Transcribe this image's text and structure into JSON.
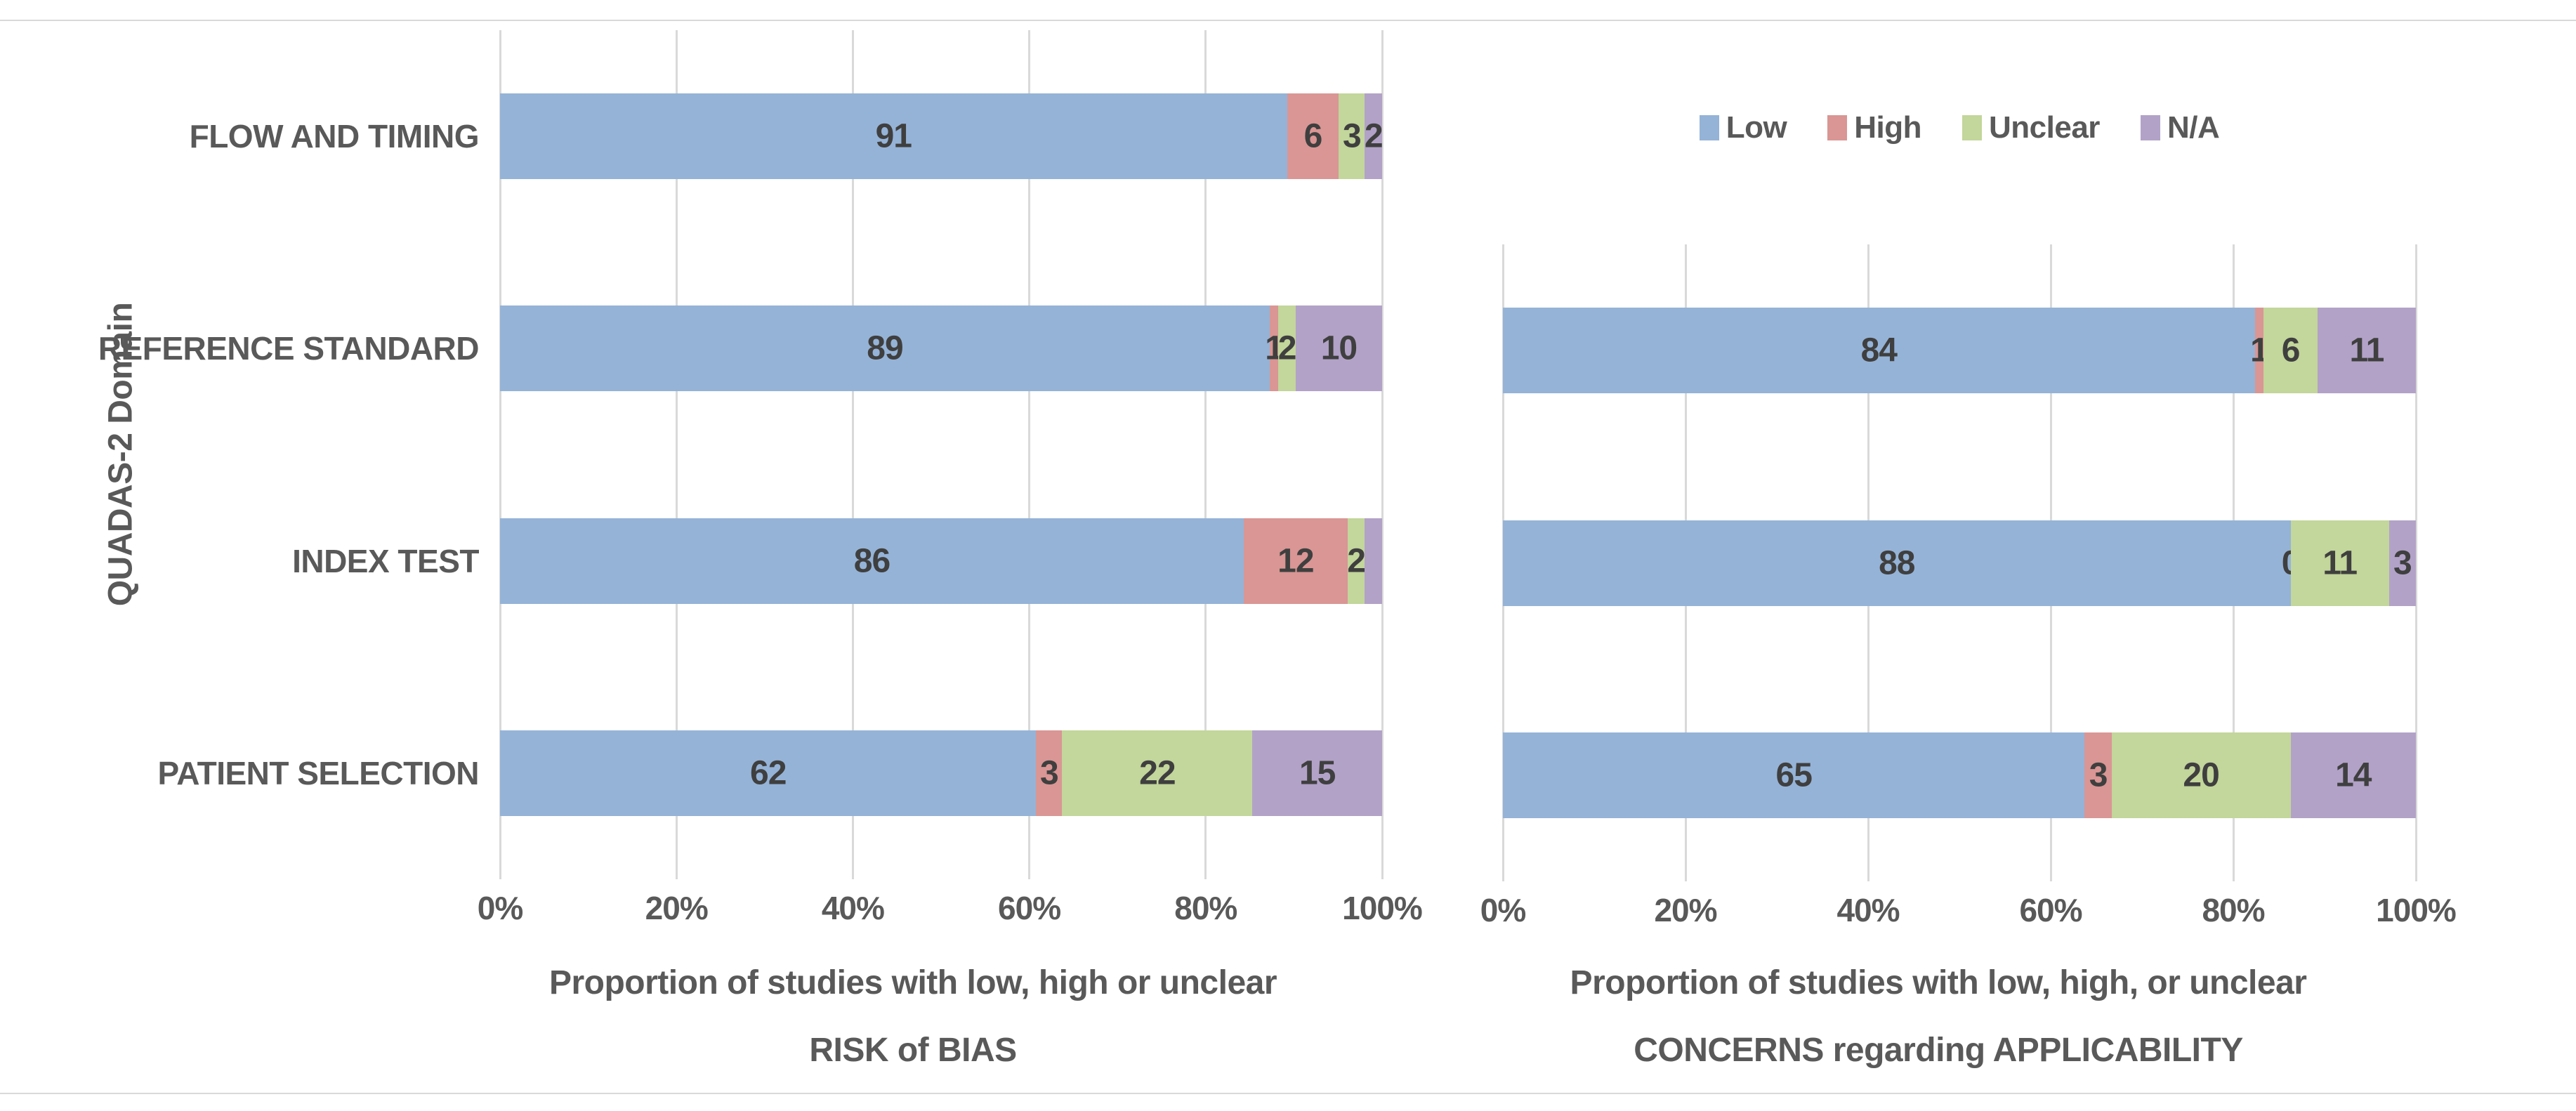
{
  "figure": {
    "y_axis_title": "QUADAS-2 Domain",
    "background": "#FFFFFF",
    "border_line_color": "#D9D9D9"
  },
  "colors": {
    "grid": "#D9D9D9",
    "axis_text": "#595959",
    "data_label": "#3F3F3F",
    "low": "#95B3D7",
    "high": "#D99694",
    "unclear": "#C3D69B",
    "na": "#B2A2C7"
  },
  "legend": {
    "position": "top-right",
    "items": [
      {
        "label": "Low",
        "color": "#95B3D7"
      },
      {
        "label": "High",
        "color": "#D99694"
      },
      {
        "label": "Unclear",
        "color": "#C3D69B"
      },
      {
        "label": "N/A",
        "color": "#B2A2C7"
      }
    ]
  },
  "chart_data": [
    {
      "id": "risk-of-bias",
      "type": "bar",
      "orientation": "horizontal",
      "stacked": true,
      "stack_mode": "100%",
      "grid": true,
      "title_lines": [
        "Proportion of studies with low, high or unclear",
        "RISK of BIAS"
      ],
      "categories": [
        "FLOW AND TIMING",
        "REFERENCE STANDARD",
        "INDEX TEST",
        "PATIENT SELECTION"
      ],
      "series": [
        {
          "name": "Low",
          "color": "#95B3D7",
          "values": [
            91,
            89,
            86,
            62
          ],
          "labels": [
            "91",
            "89",
            "86",
            "62"
          ]
        },
        {
          "name": "High",
          "color": "#D99694",
          "values": [
            6,
            1,
            12,
            3
          ],
          "labels": [
            "6",
            "1",
            "12",
            "3"
          ]
        },
        {
          "name": "Unclear",
          "color": "#C3D69B",
          "values": [
            3,
            2,
            2,
            22
          ],
          "labels": [
            "3",
            "2",
            "2",
            "22"
          ]
        },
        {
          "name": "N/A",
          "color": "#B2A2C7",
          "values": [
            2,
            10,
            2,
            15
          ],
          "labels": [
            "2",
            "10",
            "",
            "15"
          ]
        }
      ],
      "x_ticks": [
        "0%",
        "20%",
        "40%",
        "60%",
        "80%",
        "100%"
      ],
      "x_range": [
        0,
        100
      ]
    },
    {
      "id": "applicability",
      "type": "bar",
      "orientation": "horizontal",
      "stacked": true,
      "stack_mode": "100%",
      "grid": true,
      "title_lines": [
        "Proportion of studies with low, high, or unclear",
        "CONCERNS regarding APPLICABILITY"
      ],
      "categories": [
        "REFERENCE STANDARD",
        "INDEX TEST",
        "PATIENT SELECTION"
      ],
      "series": [
        {
          "name": "Low",
          "color": "#95B3D7",
          "values": [
            84,
            88,
            65
          ],
          "labels": [
            "84",
            "88",
            "65"
          ]
        },
        {
          "name": "High",
          "color": "#D99694",
          "values": [
            1,
            0,
            3
          ],
          "labels": [
            "1",
            "0",
            "3"
          ]
        },
        {
          "name": "Unclear",
          "color": "#C3D69B",
          "values": [
            6,
            11,
            20
          ],
          "labels": [
            "6",
            "11",
            "20"
          ]
        },
        {
          "name": "N/A",
          "color": "#B2A2C7",
          "values": [
            11,
            3,
            14
          ],
          "labels": [
            "11",
            "3",
            "14"
          ]
        }
      ],
      "x_ticks": [
        "0%",
        "20%",
        "40%",
        "60%",
        "80%",
        "100%"
      ],
      "x_range": [
        0,
        100
      ]
    }
  ]
}
